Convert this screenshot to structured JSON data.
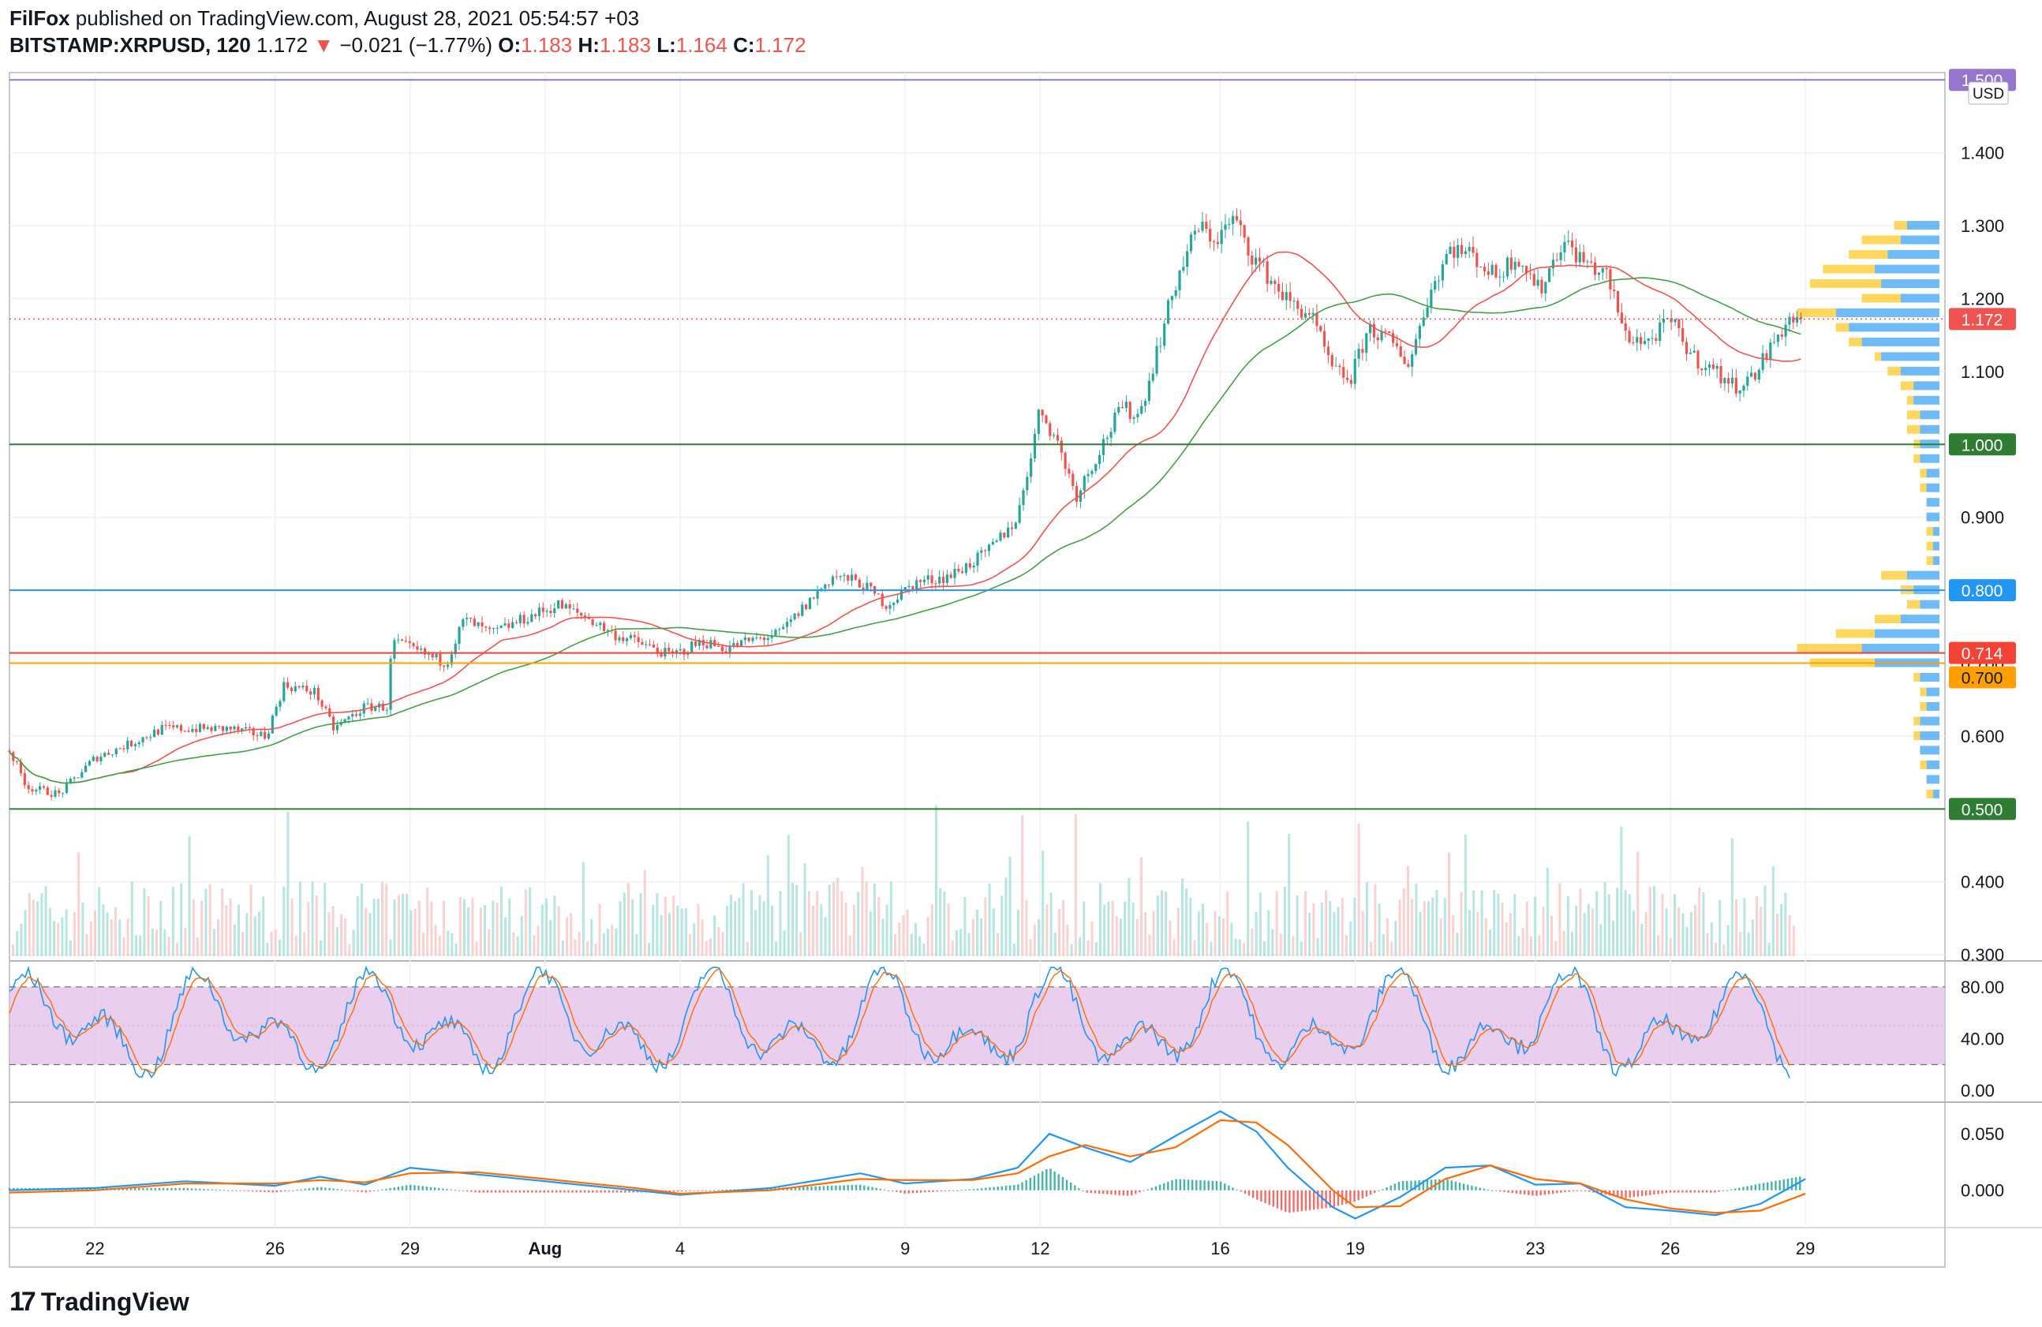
{
  "header": {
    "publisher": "FilFox",
    "published_text": "published on TradingView.com, August 28, 2021 05:54:57 +03",
    "symbol": "BITSTAMP:XRPUSD, 120",
    "last": "1.172",
    "change_arrow": "▼",
    "change": "−0.021 (−1.77%)",
    "o_label": "O:",
    "o_value": "1.183",
    "h_label": "H:",
    "h_value": "1.183",
    "l_label": "L:",
    "l_value": "1.164",
    "c_label": "C:",
    "c_value": "1.172"
  },
  "footer": {
    "brand": "TradingView",
    "logo_icon": "tradingview-logo-icon"
  },
  "colors": {
    "up": "#26a69a",
    "down": "#ef5350",
    "ma_long": "#43a047",
    "ma_short": "#ef5350",
    "level_green": "#2e7d32",
    "level_blue": "#2196f3",
    "level_red": "#f44336",
    "level_orange": "#ffa000",
    "level_purple": "#9575cd",
    "stoch_band": "#e1bee7",
    "macd_line": "#2196f3",
    "macd_signal": "#ff6d00",
    "vp_up": "#2196f3",
    "vp_down": "#ffc107"
  },
  "chart_data": [
    {
      "type": "candlestick",
      "panel": "price",
      "currency": "USD",
      "y_ticks": [
        "0.300",
        "0.400",
        "0.500",
        "0.600",
        "0.700",
        "0.800",
        "0.900",
        "1.000",
        "1.100",
        "1.200",
        "1.300",
        "1.400"
      ],
      "ylim": [
        0.298,
        1.51
      ],
      "x_ticks": [
        "22",
        "26",
        "29",
        "Aug",
        "4",
        "9",
        "12",
        "16",
        "19",
        "23",
        "26",
        "29"
      ],
      "x_tick_days": [
        22,
        26,
        29,
        32,
        35,
        40,
        43,
        47,
        50,
        54,
        57,
        60
      ],
      "xlim_days": [
        20.1,
        63.1
      ],
      "last_price": "1.172",
      "horizontal_levels": [
        {
          "value": 1.5,
          "label": "1.500",
          "color": "#9575cd"
        },
        {
          "value": 1.0,
          "label": "1.000",
          "color": "#2e7d32"
        },
        {
          "value": 0.8,
          "label": "0.800",
          "color": "#2196f3"
        },
        {
          "value": 0.714,
          "label": "0.714",
          "color": "#f44336"
        },
        {
          "value": 0.7,
          "label": "0.700",
          "color": "#ffa000"
        },
        {
          "value": 0.5,
          "label": "0.500",
          "color": "#2e7d32"
        }
      ],
      "price_path": [
        [
          20.1,
          0.58
        ],
        [
          20.5,
          0.53
        ],
        [
          21.2,
          0.52
        ],
        [
          22.0,
          0.57
        ],
        [
          22.8,
          0.59
        ],
        [
          23.5,
          0.61
        ],
        [
          24.2,
          0.61
        ],
        [
          25.0,
          0.61
        ],
        [
          25.8,
          0.6
        ],
        [
          26.2,
          0.67
        ],
        [
          26.9,
          0.66
        ],
        [
          27.3,
          0.61
        ],
        [
          28.0,
          0.64
        ],
        [
          28.5,
          0.64
        ],
        [
          28.6,
          0.73
        ],
        [
          29.0,
          0.72
        ],
        [
          29.8,
          0.7
        ],
        [
          30.2,
          0.76
        ],
        [
          30.8,
          0.74
        ],
        [
          31.5,
          0.76
        ],
        [
          32.3,
          0.78
        ],
        [
          33.0,
          0.76
        ],
        [
          33.5,
          0.74
        ],
        [
          34.0,
          0.73
        ],
        [
          34.8,
          0.71
        ],
        [
          35.5,
          0.73
        ],
        [
          36.0,
          0.72
        ],
        [
          36.5,
          0.73
        ],
        [
          37.2,
          0.74
        ],
        [
          37.8,
          0.78
        ],
        [
          38.4,
          0.82
        ],
        [
          39.0,
          0.81
        ],
        [
          39.6,
          0.78
        ],
        [
          40.2,
          0.81
        ],
        [
          41.0,
          0.82
        ],
        [
          41.8,
          0.85
        ],
        [
          42.5,
          0.9
        ],
        [
          43.0,
          1.05
        ],
        [
          43.4,
          1.0
        ],
        [
          43.8,
          0.93
        ],
        [
          44.3,
          0.99
        ],
        [
          44.8,
          1.05
        ],
        [
          45.2,
          1.04
        ],
        [
          45.6,
          1.13
        ],
        [
          46.0,
          1.22
        ],
        [
          46.5,
          1.3
        ],
        [
          46.9,
          1.28
        ],
        [
          47.3,
          1.31
        ],
        [
          47.7,
          1.26
        ],
        [
          48.2,
          1.22
        ],
        [
          48.6,
          1.19
        ],
        [
          49.0,
          1.18
        ],
        [
          49.5,
          1.1
        ],
        [
          49.9,
          1.09
        ],
        [
          50.3,
          1.16
        ],
        [
          50.8,
          1.14
        ],
        [
          51.2,
          1.11
        ],
        [
          51.6,
          1.2
        ],
        [
          52.1,
          1.27
        ],
        [
          52.6,
          1.26
        ],
        [
          53.1,
          1.23
        ],
        [
          53.6,
          1.26
        ],
        [
          54.1,
          1.21
        ],
        [
          54.6,
          1.28
        ],
        [
          55.1,
          1.25
        ],
        [
          55.6,
          1.23
        ],
        [
          56.0,
          1.15
        ],
        [
          56.5,
          1.14
        ],
        [
          57.0,
          1.17
        ],
        [
          57.5,
          1.12
        ],
        [
          58.0,
          1.1
        ],
        [
          58.4,
          1.08
        ],
        [
          58.8,
          1.09
        ],
        [
          59.2,
          1.13
        ],
        [
          59.6,
          1.17
        ],
        [
          59.9,
          1.172
        ]
      ],
      "volume_profile": [
        [
          1.3,
          0.07,
          0.05
        ],
        [
          1.28,
          0.12,
          0.06
        ],
        [
          1.26,
          0.14,
          0.08
        ],
        [
          1.24,
          0.18,
          0.1
        ],
        [
          1.22,
          0.2,
          0.09
        ],
        [
          1.2,
          0.12,
          0.06
        ],
        [
          1.18,
          0.22,
          0.16
        ],
        [
          1.16,
          0.16,
          0.14
        ],
        [
          1.14,
          0.14,
          0.12
        ],
        [
          1.12,
          0.1,
          0.09
        ],
        [
          1.1,
          0.08,
          0.06
        ],
        [
          1.08,
          0.06,
          0.04
        ],
        [
          1.06,
          0.05,
          0.04
        ],
        [
          1.04,
          0.05,
          0.03
        ],
        [
          1.02,
          0.05,
          0.03
        ],
        [
          1.0,
          0.04,
          0.03
        ],
        [
          0.98,
          0.04,
          0.03
        ],
        [
          0.96,
          0.03,
          0.02
        ],
        [
          0.94,
          0.03,
          0.02
        ],
        [
          0.92,
          0.02,
          0.02
        ],
        [
          0.9,
          0.02,
          0.02
        ],
        [
          0.88,
          0.02,
          0.01
        ],
        [
          0.86,
          0.02,
          0.01
        ],
        [
          0.84,
          0.02,
          0.01
        ],
        [
          0.82,
          0.09,
          0.05
        ],
        [
          0.8,
          0.06,
          0.04
        ],
        [
          0.78,
          0.05,
          0.03
        ],
        [
          0.76,
          0.1,
          0.06
        ],
        [
          0.74,
          0.16,
          0.1
        ],
        [
          0.72,
          0.22,
          0.12
        ],
        [
          0.7,
          0.2,
          0.1
        ],
        [
          0.68,
          0.04,
          0.03
        ],
        [
          0.66,
          0.03,
          0.02
        ],
        [
          0.64,
          0.03,
          0.02
        ],
        [
          0.62,
          0.04,
          0.03
        ],
        [
          0.6,
          0.04,
          0.03
        ],
        [
          0.58,
          0.03,
          0.03
        ],
        [
          0.56,
          0.03,
          0.02
        ],
        [
          0.54,
          0.02,
          0.02
        ],
        [
          0.52,
          0.02,
          0.01
        ]
      ]
    },
    {
      "type": "line",
      "panel": "stochastic",
      "y_ticks": [
        "0.00",
        "40.00",
        "80.00"
      ],
      "ylim": [
        -6,
        100
      ],
      "band": [
        20,
        80
      ]
    },
    {
      "type": "line",
      "panel": "macd",
      "y_ticks": [
        "0.000",
        "0.050"
      ],
      "ylim": [
        -0.033,
        0.078
      ],
      "macd_path": [
        [
          20.1,
          0.0
        ],
        [
          22.0,
          0.002
        ],
        [
          24.0,
          0.008
        ],
        [
          26.0,
          0.004
        ],
        [
          27.0,
          0.012
        ],
        [
          28.0,
          0.005
        ],
        [
          29.0,
          0.02
        ],
        [
          30.5,
          0.014
        ],
        [
          32.0,
          0.008
        ],
        [
          34.0,
          0.0
        ],
        [
          35.0,
          -0.004
        ],
        [
          37.0,
          0.002
        ],
        [
          39.0,
          0.015
        ],
        [
          40.0,
          0.006
        ],
        [
          41.5,
          0.01
        ],
        [
          42.5,
          0.02
        ],
        [
          43.2,
          0.05
        ],
        [
          44.0,
          0.038
        ],
        [
          45.0,
          0.025
        ],
        [
          46.0,
          0.048
        ],
        [
          47.0,
          0.07
        ],
        [
          47.8,
          0.052
        ],
        [
          48.5,
          0.02
        ],
        [
          49.5,
          -0.015
        ],
        [
          50.0,
          -0.025
        ],
        [
          51.0,
          -0.006
        ],
        [
          52.0,
          0.02
        ],
        [
          53.0,
          0.022
        ],
        [
          54.0,
          0.005
        ],
        [
          55.0,
          0.006
        ],
        [
          56.0,
          -0.015
        ],
        [
          57.0,
          -0.018
        ],
        [
          58.0,
          -0.022
        ],
        [
          59.0,
          -0.012
        ],
        [
          60.0,
          0.01
        ]
      ],
      "signal_path": [
        [
          20.1,
          -0.002
        ],
        [
          22.0,
          0.0
        ],
        [
          24.0,
          0.006
        ],
        [
          26.0,
          0.006
        ],
        [
          27.0,
          0.009
        ],
        [
          28.0,
          0.007
        ],
        [
          29.0,
          0.015
        ],
        [
          30.5,
          0.016
        ],
        [
          32.0,
          0.01
        ],
        [
          34.0,
          0.002
        ],
        [
          35.0,
          -0.003
        ],
        [
          37.0,
          0.0
        ],
        [
          39.0,
          0.01
        ],
        [
          40.0,
          0.009
        ],
        [
          41.5,
          0.009
        ],
        [
          42.5,
          0.015
        ],
        [
          43.2,
          0.03
        ],
        [
          44.0,
          0.04
        ],
        [
          45.0,
          0.03
        ],
        [
          46.0,
          0.038
        ],
        [
          47.0,
          0.062
        ],
        [
          47.8,
          0.06
        ],
        [
          48.5,
          0.04
        ],
        [
          49.5,
          0.0
        ],
        [
          50.0,
          -0.015
        ],
        [
          51.0,
          -0.014
        ],
        [
          52.0,
          0.01
        ],
        [
          53.0,
          0.022
        ],
        [
          54.0,
          0.01
        ],
        [
          55.0,
          0.006
        ],
        [
          56.0,
          -0.008
        ],
        [
          57.0,
          -0.016
        ],
        [
          58.0,
          -0.02
        ],
        [
          59.0,
          -0.018
        ],
        [
          60.0,
          -0.003
        ]
      ]
    }
  ]
}
